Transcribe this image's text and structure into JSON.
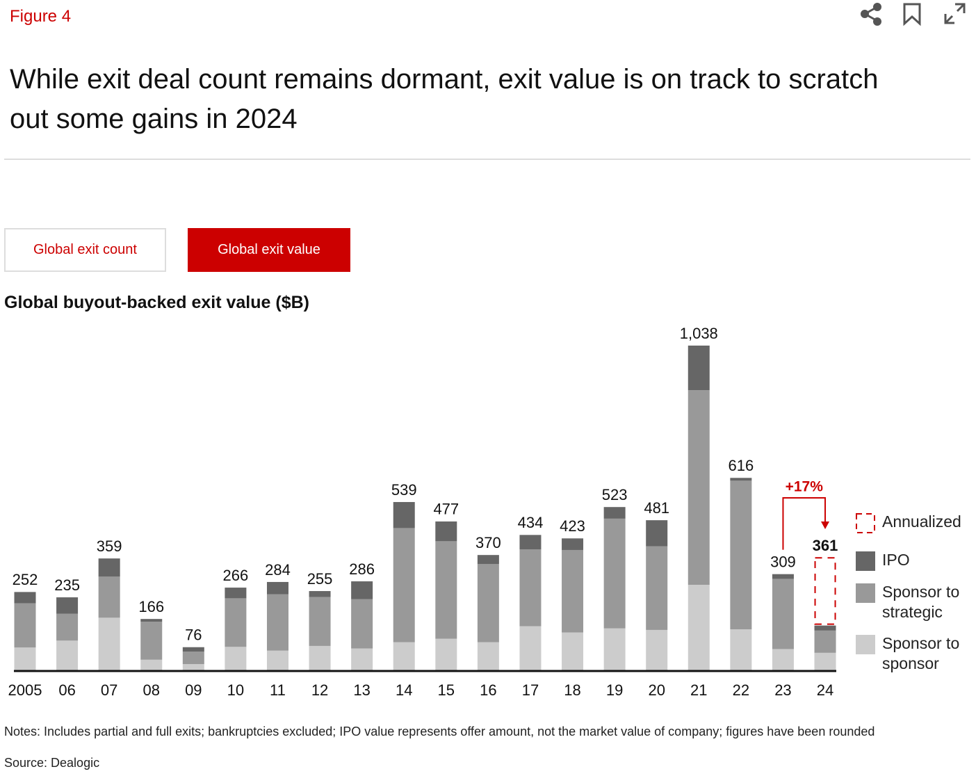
{
  "header": {
    "figure": "Figure 4",
    "title": "While exit deal count remains dormant, exit value is on track to scratch out some gains in 2024"
  },
  "tabs": [
    "Global exit count",
    "Global exit value"
  ],
  "chart_data": {
    "type": "bar",
    "stacked": true,
    "title": "Global buyout-backed exit value ($B)",
    "categories": [
      "2005",
      "06",
      "07",
      "08",
      "09",
      "10",
      "11",
      "12",
      "13",
      "14",
      "15",
      "16",
      "17",
      "18",
      "19",
      "20",
      "21",
      "22",
      "23",
      "24"
    ],
    "series": [
      {
        "name": "Sponsor to sponsor",
        "color": "#cccccc",
        "values": [
          75,
          97,
          170,
          36,
          22,
          77,
          65,
          80,
          72,
          92,
          103,
          92,
          143,
          123,
          136,
          131,
          275,
          133,
          70,
          58
        ]
      },
      {
        "name": "Sponsor to strategic",
        "color": "#999999",
        "values": [
          141,
          86,
          131,
          121,
          40,
          155,
          180,
          156,
          157,
          364,
          311,
          249,
          245,
          263,
          350,
          267,
          621,
          474,
          224,
          71
        ]
      },
      {
        "name": "IPO",
        "color": "#666666",
        "values": [
          36,
          52,
          58,
          9,
          14,
          34,
          39,
          19,
          57,
          83,
          63,
          29,
          46,
          37,
          37,
          83,
          142,
          9,
          15,
          16
        ]
      },
      {
        "name": "Annualized",
        "color": "#cc0000",
        "dashed": true,
        "values": [
          null,
          null,
          null,
          null,
          null,
          null,
          null,
          null,
          null,
          null,
          null,
          null,
          null,
          null,
          null,
          null,
          null,
          null,
          null,
          216
        ]
      }
    ],
    "totals": {
      "values": [
        252,
        235,
        359,
        166,
        76,
        266,
        284,
        255,
        286,
        539,
        477,
        370,
        434,
        423,
        523,
        481,
        1038,
        616,
        309,
        361
      ],
      "value_labels": [
        "252",
        "235",
        "359",
        "166",
        "76",
        "266",
        "284",
        "255",
        "286",
        "539",
        "477",
        "370",
        "434",
        "423",
        "523",
        "481",
        "1,038",
        "616",
        "309",
        "361"
      ]
    },
    "annotation": "+17%"
  },
  "notes": "Notes: Includes partial and full exits; bankruptcies excluded; IPO value represents offer amount, not the market value of company; figures have been rounded",
  "source": "Source: Dealogic"
}
